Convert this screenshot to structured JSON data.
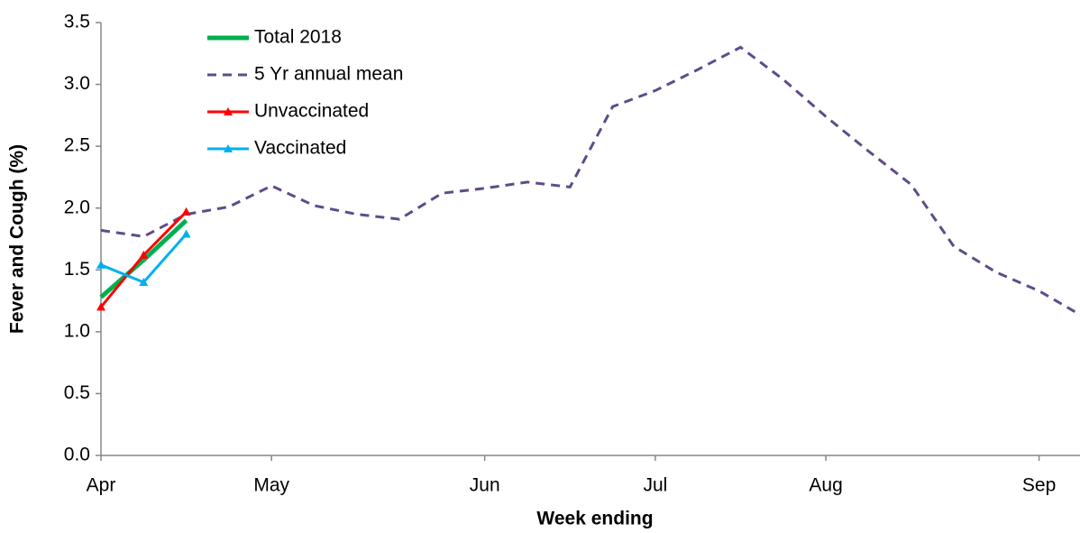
{
  "chart_data": {
    "type": "line",
    "x_label": "Week ending",
    "y_label": "Fever and Cough (%)",
    "categories": [
      "Apr",
      null,
      null,
      null,
      "May",
      null,
      null,
      null,
      null,
      "Jun",
      null,
      null,
      null,
      "Jul",
      null,
      null,
      null,
      "Aug",
      null,
      null,
      null,
      null,
      "Sep",
      null
    ],
    "series": [
      {
        "name": "Total 2018",
        "color": "#00b050",
        "dash": false,
        "markers": false,
        "width": 5,
        "values": [
          1.28,
          1.58,
          1.9,
          null,
          null,
          null,
          null,
          null,
          null,
          null,
          null,
          null,
          null,
          null,
          null,
          null,
          null,
          null,
          null,
          null,
          null,
          null,
          null,
          null
        ]
      },
      {
        "name": "5 Yr annual mean",
        "color": "#5f4b8b",
        "dash": true,
        "markers": false,
        "width": 3,
        "values": [
          1.82,
          1.77,
          1.95,
          2.01,
          2.18,
          2.02,
          1.95,
          1.91,
          2.12,
          2.16,
          2.21,
          2.17,
          2.82,
          2.95,
          3.12,
          3.3,
          3.04,
          2.74,
          2.46,
          2.19,
          1.69,
          1.48,
          1.33,
          1.13
        ]
      },
      {
        "name": "Unvaccinated",
        "color": "#ff0000",
        "dash": false,
        "markers": true,
        "width": 3,
        "values": [
          1.2,
          1.62,
          1.97,
          null,
          null,
          null,
          null,
          null,
          null,
          null,
          null,
          null,
          null,
          null,
          null,
          null,
          null,
          null,
          null,
          null,
          null,
          null,
          null,
          null
        ]
      },
      {
        "name": "Vaccinated",
        "color": "#00b0f0",
        "dash": false,
        "markers": true,
        "width": 3,
        "values": [
          1.54,
          1.4,
          1.79,
          null,
          null,
          null,
          null,
          null,
          null,
          null,
          null,
          null,
          null,
          null,
          null,
          null,
          null,
          null,
          null,
          null,
          null,
          null,
          null,
          null
        ]
      }
    ],
    "ylim": [
      0,
      3.5
    ],
    "yticks": [
      {
        "value": 0,
        "label": "0.0"
      },
      {
        "value": 0.5,
        "label": "0.5"
      },
      {
        "value": 1,
        "label": "1.0"
      },
      {
        "value": 1.5,
        "label": "1.5"
      },
      {
        "value": 2,
        "label": "2.0"
      },
      {
        "value": 2.5,
        "label": "2.5"
      },
      {
        "value": 3,
        "label": "3.0"
      },
      {
        "value": 3.5,
        "label": "3.5"
      }
    ],
    "legend": "upper-left"
  }
}
